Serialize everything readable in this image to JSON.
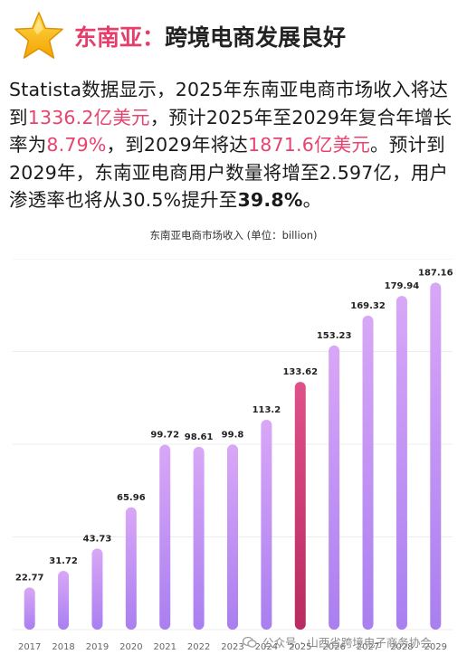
{
  "header": {
    "icon": "star-icon",
    "title_accent": "东南亚：",
    "title_rest": "跨境电商发展良好"
  },
  "paragraph": {
    "p1": "Statista数据显示，2025年东南亚电商市场收入将达到",
    "v1": "1336.2亿美元",
    "p2": "，预计2025年至2029年复合年增长率为",
    "v2": "8.79%",
    "p3": "，到2029年将达",
    "v3": "1871.6亿美元",
    "p4": "。预计到2029年，东南亚电商用户数量将增至2.597亿，用户渗透率也将从30.5%提升至",
    "v4": "39.8%",
    "p5": "。"
  },
  "watermark": {
    "text": "公众号 · 山西省跨境电子商务协会"
  },
  "colors": {
    "accent": "#e63d6b",
    "bar_top": "#d9a7f7",
    "bar_bottom": "#a97ff0",
    "bar_highlight_top": "#e0508a",
    "bar_highlight_bottom": "#b82a60"
  },
  "chart_data": {
    "type": "bar",
    "title": "东南亚电商市场收入 (单位：billion)",
    "categories": [
      "2017",
      "2018",
      "2019",
      "2020",
      "2021",
      "2022",
      "2023",
      "2024",
      "2025",
      "2026",
      "2027",
      "2028",
      "2029"
    ],
    "values": [
      22.77,
      31.72,
      43.73,
      65.96,
      99.72,
      98.61,
      99.8,
      113.2,
      133.62,
      153.23,
      169.32,
      179.94,
      187.16
    ],
    "value_labels": [
      "22.77",
      "31.72",
      "43.73",
      "65.96",
      "99.72",
      "98.61",
      "99.8",
      "113.2",
      "133.62",
      "153.23",
      "169.32",
      "179.94",
      "187.16"
    ],
    "highlight_category": "2025",
    "ylim": [
      0,
      200
    ],
    "grid": true,
    "xlabel": "",
    "ylabel": ""
  }
}
